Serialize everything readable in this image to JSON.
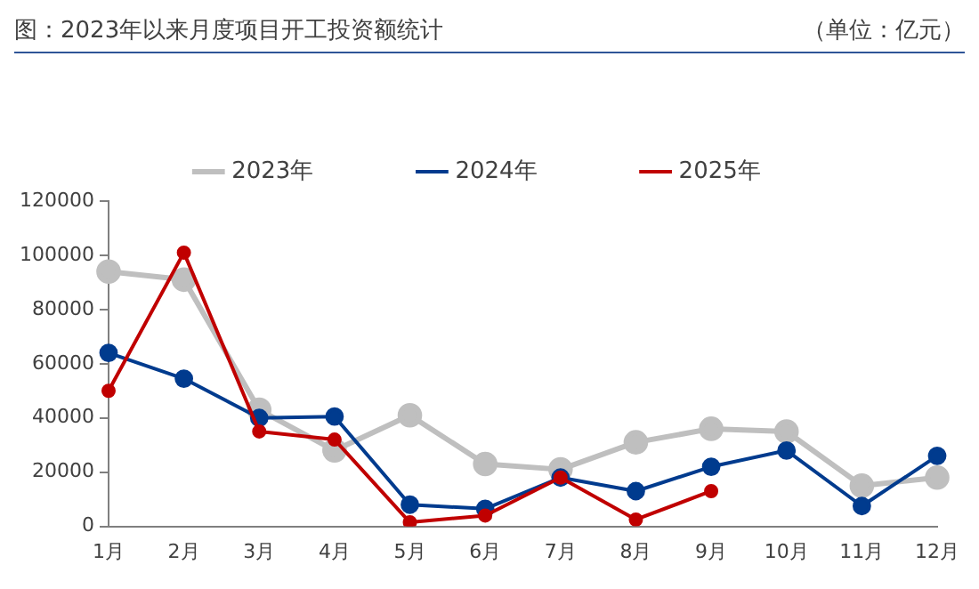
{
  "chart_data": {
    "type": "line",
    "title": "图：2023年以来月度项目开工投资额统计",
    "annotations": [
      "（单位：亿元）"
    ],
    "categories": [
      "1月",
      "2月",
      "3月",
      "4月",
      "5月",
      "6月",
      "7月",
      "8月",
      "9月",
      "10月",
      "11月",
      "12月"
    ],
    "series": [
      {
        "name": "2023年",
        "color": "#bfbfbf",
        "values": [
          94000,
          91000,
          43000,
          28000,
          41000,
          23000,
          21000,
          31000,
          36000,
          35000,
          15000,
          18000
        ]
      },
      {
        "name": "2024年",
        "color": "#003b8e",
        "values": [
          64000,
          54500,
          40000,
          40500,
          8000,
          6500,
          18000,
          13000,
          22000,
          28000,
          7500,
          26000
        ]
      },
      {
        "name": "2025年",
        "color": "#c00000",
        "values": [
          50000,
          101000,
          35000,
          32000,
          1500,
          4000,
          18000,
          2500,
          13000,
          null,
          null,
          null
        ]
      }
    ],
    "ylim": [
      0,
      120000
    ],
    "yticks": [
      0,
      20000,
      40000,
      60000,
      80000,
      100000,
      120000
    ],
    "grid": false,
    "legend": "top",
    "marker": "circle",
    "line_style": "solid"
  }
}
